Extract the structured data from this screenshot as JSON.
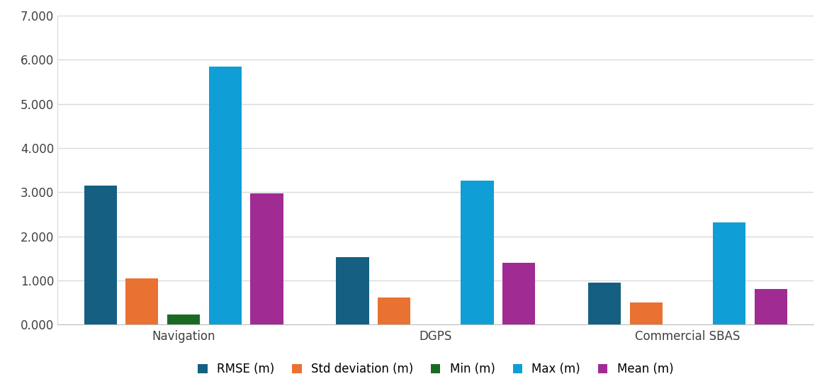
{
  "chart_data": {
    "type": "bar",
    "categories": [
      "Navigation",
      "DGPS",
      "Commercial SBAS"
    ],
    "series": [
      {
        "name": "RMSE (m)",
        "color": "#156082",
        "values": [
          3.15,
          1.53,
          0.95
        ]
      },
      {
        "name": "Std deviation (m)",
        "color": "#e97132",
        "values": [
          1.05,
          0.62,
          0.5
        ]
      },
      {
        "name": "Min (m)",
        "color": "#196b24",
        "values": [
          0.23,
          0.01,
          0.0
        ]
      },
      {
        "name": "Max (m)",
        "color": "#0f9ed5",
        "values": [
          5.85,
          3.26,
          2.31
        ]
      },
      {
        "name": "Mean (m)",
        "color": "#a02b93",
        "values": [
          2.98,
          1.4,
          0.81
        ]
      }
    ],
    "ylim": [
      0,
      7
    ],
    "yticks": [
      {
        "value": 0,
        "label": "0.000"
      },
      {
        "value": 1,
        "label": "1.000"
      },
      {
        "value": 2,
        "label": "2.000"
      },
      {
        "value": 3,
        "label": "3.000"
      },
      {
        "value": 4,
        "label": "4.000"
      },
      {
        "value": 5,
        "label": "5.000"
      },
      {
        "value": 6,
        "label": "6.000"
      },
      {
        "value": 7,
        "label": "7.000"
      }
    ],
    "grid": true,
    "legend": "lower center"
  }
}
